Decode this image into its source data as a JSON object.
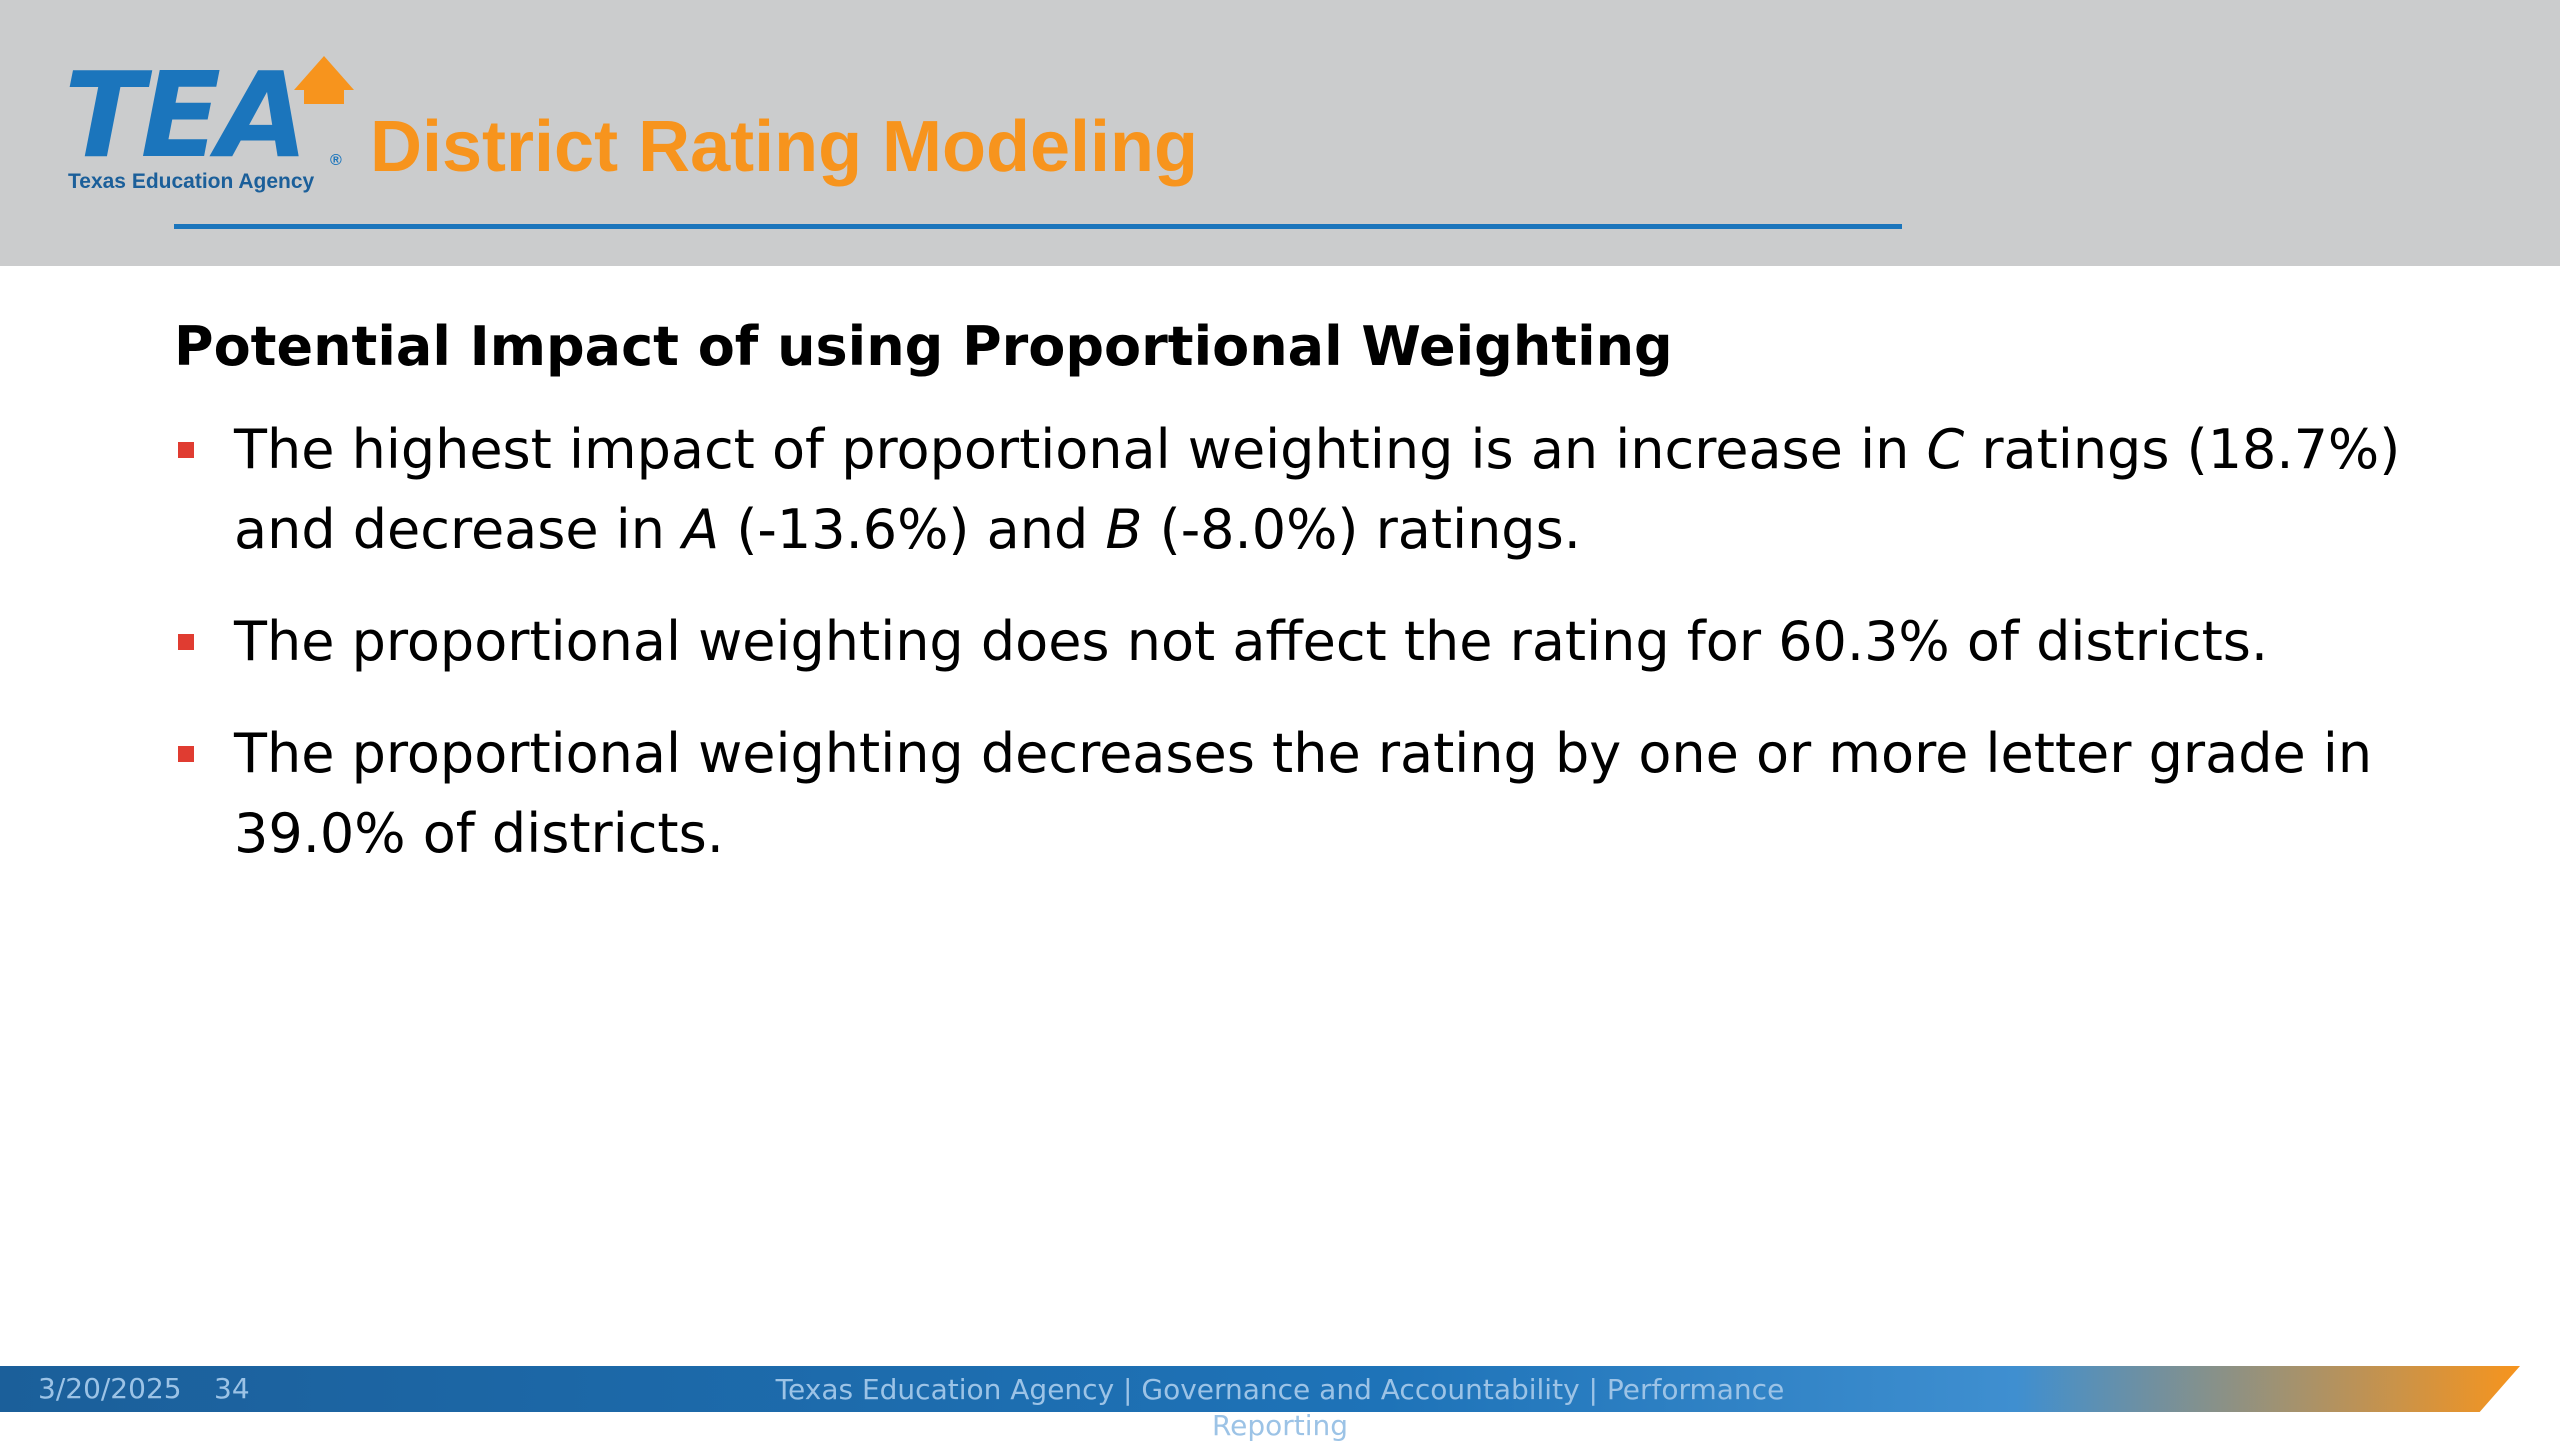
{
  "header": {
    "logo_letters": "TEA",
    "logo_reg": "®",
    "logo_subtitle": "Texas Education Agency",
    "app_title": "District Rating Modeling",
    "colors": {
      "logo_blue": "#1b75bc",
      "accent_orange": "#f7941d",
      "band_gray": "#cbcccd"
    }
  },
  "slide": {
    "title": "Potential Impact of using Proportional Weighting",
    "bullets": [
      {
        "parts": [
          {
            "text": "The highest impact of proportional weighting is an increase in ",
            "italic": false
          },
          {
            "text": "C",
            "italic": true
          },
          {
            "text": " ratings (18.7%) and decrease in ",
            "italic": false
          },
          {
            "text": "A",
            "italic": true
          },
          {
            "text": " (-13.6%) and ",
            "italic": false
          },
          {
            "text": "B",
            "italic": true
          },
          {
            "text": " (-8.0%) ratings.",
            "italic": false
          }
        ]
      },
      {
        "parts": [
          {
            "text": "The proportional weighting does not affect the rating for 60.3% of districts.",
            "italic": false
          }
        ]
      },
      {
        "parts": [
          {
            "text": "The proportional weighting decreases the rating by one or more letter grade in 39.0% of districts.",
            "italic": false
          }
        ]
      }
    ],
    "bullet_color": "#e03c31"
  },
  "footer": {
    "date": "3/20/2025",
    "page_number": "34",
    "text": "Texas Education Agency | Governance and Accountability | Performance Reporting"
  }
}
